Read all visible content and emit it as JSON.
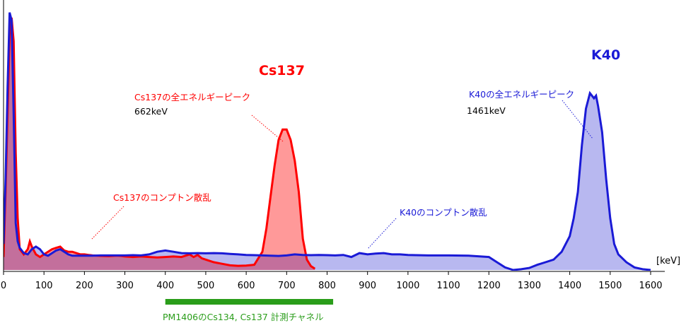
{
  "chart_data": {
    "type": "area",
    "title": "",
    "xlabel": "",
    "ylabel": "",
    "x_unit_label": "[keV]",
    "xlim": [
      0,
      1600
    ],
    "ylim": [
      0,
      1
    ],
    "x_ticks": [
      "0",
      "100",
      "200",
      "300",
      "400",
      "500",
      "600",
      "700",
      "800",
      "900",
      "1000",
      "1100",
      "1200",
      "1300",
      "1400",
      "1500",
      "1600"
    ],
    "grid": false,
    "colors": {
      "cs_line": "#ff0000",
      "cs_fill": "#ff9999",
      "k_line": "#1a1ad6",
      "k_fill": "#b8b8f0",
      "overlap_fill": "#c36f9c",
      "band": "#2a9d1a",
      "band_text": "#2a9d1a"
    },
    "series": [
      {
        "id": "cs137",
        "x": [
          0,
          5,
          10,
          15,
          20,
          25,
          30,
          35,
          40,
          50,
          60,
          65,
          70,
          80,
          90,
          100,
          110,
          120,
          130,
          140,
          150,
          160,
          170,
          180,
          190,
          200,
          210,
          220,
          240,
          260,
          280,
          290,
          300,
          320,
          340,
          360,
          380,
          400,
          420,
          440,
          460,
          470,
          480,
          490,
          500,
          520,
          540,
          560,
          580,
          600,
          620,
          640,
          650,
          660,
          670,
          680,
          690,
          700,
          710,
          720,
          730,
          740,
          750,
          760,
          770
        ],
        "y": [
          0.05,
          0.3,
          0.6,
          0.9,
          0.97,
          0.88,
          0.45,
          0.2,
          0.08,
          0.06,
          0.08,
          0.11,
          0.09,
          0.06,
          0.05,
          0.06,
          0.07,
          0.08,
          0.085,
          0.09,
          0.075,
          0.07,
          0.07,
          0.065,
          0.06,
          0.06,
          0.058,
          0.056,
          0.054,
          0.053,
          0.055,
          0.054,
          0.052,
          0.05,
          0.052,
          0.05,
          0.048,
          0.05,
          0.052,
          0.05,
          0.06,
          0.05,
          0.058,
          0.045,
          0.04,
          0.03,
          0.024,
          0.018,
          0.016,
          0.017,
          0.02,
          0.07,
          0.16,
          0.28,
          0.4,
          0.5,
          0.54,
          0.54,
          0.5,
          0.42,
          0.3,
          0.12,
          0.04,
          0.015,
          0.005
        ]
      },
      {
        "id": "k40",
        "x": [
          0,
          5,
          10,
          15,
          20,
          25,
          30,
          35,
          40,
          50,
          60,
          70,
          80,
          90,
          100,
          110,
          120,
          130,
          140,
          150,
          160,
          170,
          180,
          190,
          200,
          220,
          240,
          260,
          280,
          300,
          320,
          340,
          360,
          380,
          400,
          420,
          440,
          460,
          480,
          500,
          520,
          540,
          560,
          580,
          600,
          620,
          640,
          660,
          680,
          700,
          720,
          740,
          760,
          780,
          800,
          820,
          840,
          860,
          880,
          900,
          920,
          940,
          960,
          980,
          1000,
          1050,
          1100,
          1150,
          1200,
          1220,
          1240,
          1260,
          1280,
          1300,
          1320,
          1340,
          1360,
          1380,
          1400,
          1410,
          1420,
          1430,
          1440,
          1450,
          1460,
          1465,
          1470,
          1480,
          1490,
          1500,
          1510,
          1520,
          1540,
          1560,
          1580,
          1600
        ],
        "y": [
          0.1,
          0.35,
          0.7,
          0.99,
          0.96,
          0.6,
          0.18,
          0.11,
          0.085,
          0.065,
          0.06,
          0.08,
          0.09,
          0.08,
          0.06,
          0.055,
          0.065,
          0.075,
          0.08,
          0.07,
          0.06,
          0.055,
          0.055,
          0.055,
          0.055,
          0.055,
          0.056,
          0.056,
          0.056,
          0.056,
          0.057,
          0.056,
          0.06,
          0.07,
          0.075,
          0.07,
          0.065,
          0.064,
          0.065,
          0.064,
          0.065,
          0.064,
          0.062,
          0.06,
          0.058,
          0.057,
          0.056,
          0.055,
          0.054,
          0.056,
          0.06,
          0.058,
          0.057,
          0.058,
          0.057,
          0.056,
          0.058,
          0.05,
          0.065,
          0.06,
          0.063,
          0.065,
          0.06,
          0.06,
          0.058,
          0.056,
          0.056,
          0.055,
          0.05,
          0.03,
          0.01,
          0.0,
          0.003,
          0.008,
          0.02,
          0.03,
          0.04,
          0.07,
          0.13,
          0.2,
          0.3,
          0.48,
          0.62,
          0.68,
          0.66,
          0.67,
          0.63,
          0.53,
          0.35,
          0.2,
          0.1,
          0.06,
          0.03,
          0.01,
          0.003,
          0.0
        ]
      }
    ],
    "annotations": {
      "cs_big": "Cs137",
      "k_big": "K40",
      "cs_peak_label": "Cs137の全エネルギーピーク",
      "cs_peak_energy": "662keV",
      "cs_compton": "Cs137のコンプトン散乱",
      "k_peak_label": "K40の全エネルギーピーク",
      "k_peak_energy": "1461keV",
      "k_compton": "K40のコンプトン散乱"
    },
    "band": {
      "from": 400,
      "to": 815,
      "label": "PM1406のCs134, Cs137 計測チャネル"
    }
  }
}
